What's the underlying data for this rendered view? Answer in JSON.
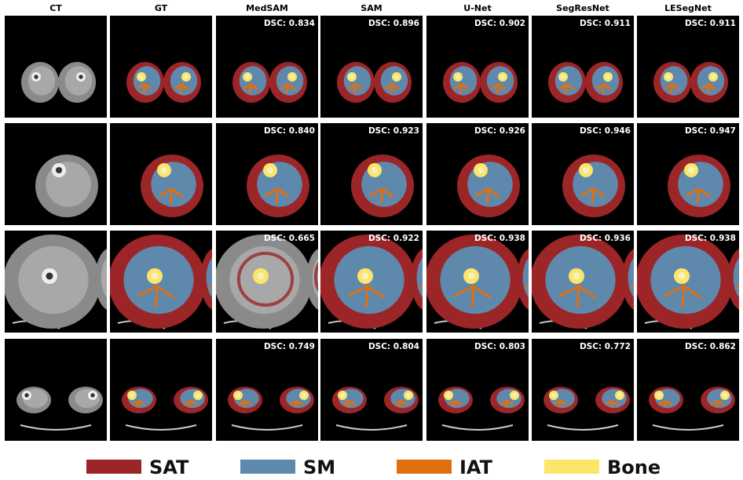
{
  "columns": [
    "CT",
    "GT",
    "MedSAM",
    "SAM",
    "U-Net",
    "SegResNet",
    "LESegNet"
  ],
  "rows": [
    {
      "dsc": [
        "DSC: 0.834",
        "DSC: 0.896",
        "DSC: 0.902",
        "DSC: 0.911",
        "DSC: 0.911"
      ]
    },
    {
      "dsc": [
        "DSC: 0.840",
        "DSC: 0.923",
        "DSC: 0.926",
        "DSC: 0.946",
        "DSC: 0.947"
      ]
    },
    {
      "dsc": [
        "DSC: 0.665",
        "DSC: 0.922",
        "DSC: 0.938",
        "DSC: 0.936",
        "DSC: 0.938"
      ]
    },
    {
      "dsc": [
        "DSC: 0.749",
        "DSC: 0.804",
        "DSC: 0.803",
        "DSC: 0.772",
        "DSC: 0.862"
      ]
    }
  ],
  "legend": [
    {
      "label": "SAT",
      "color": "#9b2527"
    },
    {
      "label": "SM",
      "color": "#5f88ad"
    },
    {
      "label": "IAT",
      "color": "#e0700f"
    },
    {
      "label": "Bone",
      "color": "#fbe66a"
    }
  ]
}
